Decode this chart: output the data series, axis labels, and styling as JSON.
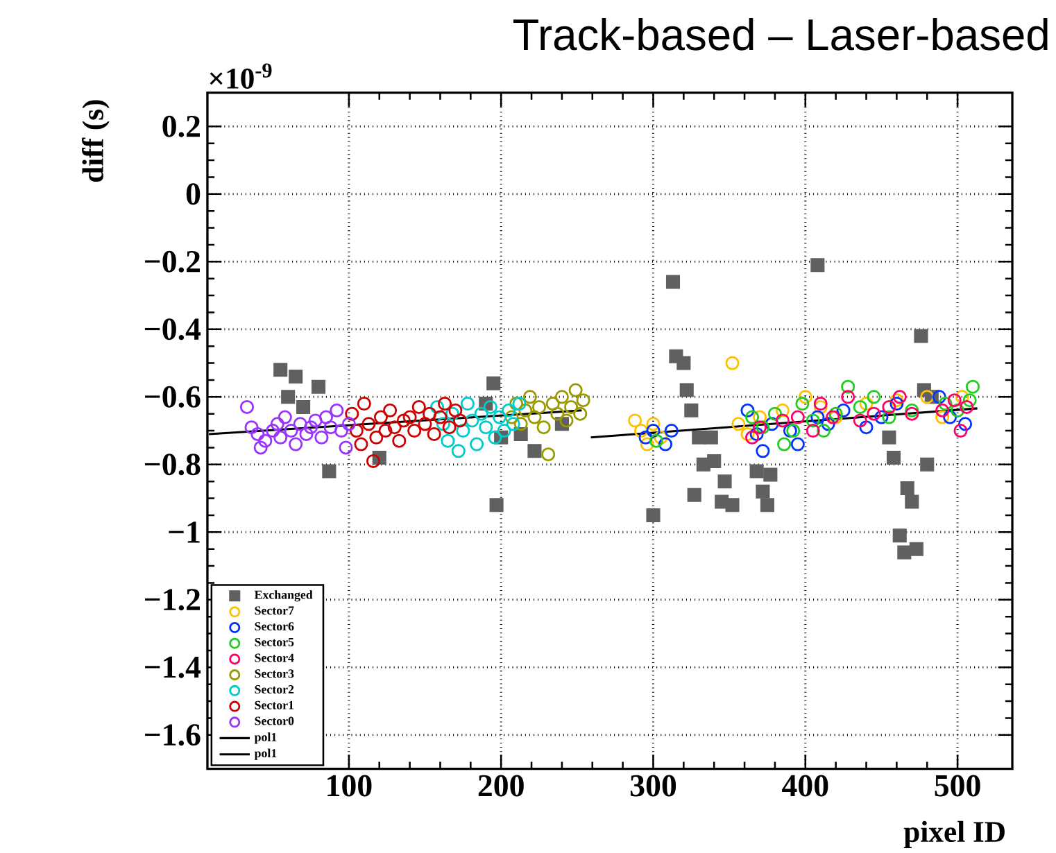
{
  "chart_data": {
    "type": "scatter",
    "title": "Track-based – Laser-based",
    "xlabel": "pixel ID",
    "ylabel": "diff (s)",
    "annotations": [
      "×10$^{-9}$"
    ],
    "xlim": [
      7,
      536
    ],
    "xticks": [
      100,
      200,
      300,
      400,
      500
    ],
    "ylim": [
      -1.7,
      0.3
    ],
    "yticks": [
      0.2,
      0,
      {
        "value": -0.2,
        "label": "−0.2"
      },
      {
        "value": -0.4,
        "label": "−0.4"
      },
      {
        "value": -0.6,
        "label": "−0.6"
      },
      {
        "value": -0.8,
        "label": "−0.8"
      },
      {
        "value": -1,
        "label": "−1"
      },
      {
        "value": -1.2,
        "label": "−1.2"
      },
      {
        "value": -1.4,
        "label": "−1.4"
      },
      {
        "value": -1.6,
        "label": "−1.6"
      }
    ],
    "grid": true,
    "legend": "bottom left",
    "series": [
      {
        "name": "Exchanged",
        "color": "#606060",
        "marker": "square",
        "x": [
          55,
          65,
          80,
          60,
          70,
          87,
          120,
          190,
          195,
          197,
          200,
          213,
          222,
          240,
          300,
          313,
          315,
          320,
          322,
          325,
          327,
          330,
          333,
          338,
          340,
          345,
          347,
          352,
          368,
          372,
          375,
          377,
          408,
          455,
          458,
          462,
          465,
          467,
          470,
          473,
          476,
          478,
          480,
          483
        ],
        "values": [
          -0.52,
          -0.54,
          -0.57,
          -0.6,
          -0.63,
          -0.82,
          -0.78,
          -0.62,
          -0.56,
          -0.92,
          -0.72,
          -0.71,
          -0.76,
          -0.68,
          -0.95,
          -0.26,
          -0.48,
          -0.5,
          -0.58,
          -0.64,
          -0.89,
          -0.72,
          -0.8,
          -0.72,
          -0.79,
          -0.91,
          -0.85,
          -0.92,
          -0.82,
          -0.88,
          -0.92,
          -0.83,
          -0.21,
          -0.72,
          -0.78,
          -1.01,
          -1.06,
          -0.87,
          -0.91,
          -1.05,
          -0.42,
          -0.58,
          -0.8,
          -0.6
        ]
      },
      {
        "name": "Sector7",
        "color": "#ffc000",
        "marker": "circle",
        "x": [
          288,
          292,
          296,
          300,
          305,
          352,
          356,
          362,
          370,
          385,
          400,
          410,
          420,
          440,
          460,
          480,
          490,
          503
        ],
        "values": [
          -0.67,
          -0.7,
          -0.74,
          -0.68,
          -0.72,
          -0.5,
          -0.68,
          -0.71,
          -0.66,
          -0.64,
          -0.6,
          -0.63,
          -0.66,
          -0.62,
          -0.61,
          -0.6,
          -0.66,
          -0.6
        ]
      },
      {
        "name": "Sector6",
        "color": "#0033ff",
        "marker": "circle",
        "x": [
          295,
          300,
          308,
          312,
          362,
          368,
          372,
          378,
          390,
          395,
          408,
          415,
          425,
          440,
          450,
          460,
          488,
          495,
          505
        ],
        "values": [
          -0.72,
          -0.7,
          -0.74,
          -0.7,
          -0.64,
          -0.71,
          -0.76,
          -0.68,
          -0.7,
          -0.74,
          -0.66,
          -0.68,
          -0.64,
          -0.69,
          -0.66,
          -0.62,
          -0.6,
          -0.66,
          -0.68
        ]
      },
      {
        "name": "Sector5",
        "color": "#22cc22",
        "marker": "circle",
        "x": [
          302,
          365,
          372,
          380,
          386,
          392,
          398,
          405,
          412,
          420,
          428,
          436,
          445,
          455,
          470,
          492,
          500,
          510,
          508
        ],
        "values": [
          -0.73,
          -0.66,
          -0.69,
          -0.65,
          -0.74,
          -0.7,
          -0.62,
          -0.67,
          -0.7,
          -0.65,
          -0.57,
          -0.63,
          -0.6,
          -0.66,
          -0.64,
          -0.62,
          -0.64,
          -0.57,
          -0.61
        ]
      },
      {
        "name": "Sector4",
        "color": "#ff0066",
        "marker": "circle",
        "x": [
          365,
          370,
          385,
          395,
          405,
          410,
          418,
          428,
          436,
          445,
          455,
          462,
          470,
          490,
          498,
          502,
          506
        ],
        "values": [
          -0.72,
          -0.69,
          -0.67,
          -0.66,
          -0.7,
          -0.62,
          -0.66,
          -0.6,
          -0.67,
          -0.65,
          -0.63,
          -0.6,
          -0.65,
          -0.64,
          -0.61,
          -0.7,
          -0.63
        ]
      },
      {
        "name": "Sector3",
        "color": "#999900",
        "marker": "circle",
        "x": [
          207,
          210,
          213,
          216,
          219,
          222,
          225,
          228,
          231,
          234,
          237,
          240,
          243,
          246,
          249,
          252,
          254
        ],
        "values": [
          -0.66,
          -0.62,
          -0.68,
          -0.64,
          -0.6,
          -0.66,
          -0.63,
          -0.69,
          -0.77,
          -0.62,
          -0.65,
          -0.6,
          -0.67,
          -0.63,
          -0.58,
          -0.65,
          -0.61
        ]
      },
      {
        "name": "Sector2",
        "color": "#00cccc",
        "marker": "circle",
        "x": [
          158,
          162,
          165,
          168,
          172,
          175,
          178,
          181,
          184,
          187,
          190,
          193,
          196,
          199,
          202,
          205,
          208,
          212
        ],
        "values": [
          -0.63,
          -0.68,
          -0.73,
          -0.65,
          -0.76,
          -0.7,
          -0.62,
          -0.67,
          -0.74,
          -0.65,
          -0.69,
          -0.63,
          -0.72,
          -0.66,
          -0.7,
          -0.64,
          -0.68,
          -0.62
        ]
      },
      {
        "name": "Sector1",
        "color": "#cc0000",
        "marker": "circle",
        "x": [
          102,
          105,
          108,
          110,
          113,
          116,
          118,
          121,
          124,
          127,
          130,
          133,
          136,
          140,
          143,
          146,
          150,
          153,
          156,
          160,
          163,
          166,
          170,
          173
        ],
        "values": [
          -0.65,
          -0.7,
          -0.74,
          -0.62,
          -0.68,
          -0.79,
          -0.72,
          -0.66,
          -0.7,
          -0.64,
          -0.69,
          -0.73,
          -0.67,
          -0.66,
          -0.7,
          -0.63,
          -0.68,
          -0.65,
          -0.71,
          -0.66,
          -0.62,
          -0.69,
          -0.64,
          -0.67
        ]
      },
      {
        "name": "Sector0",
        "color": "#9933ff",
        "marker": "circle",
        "x": [
          33,
          36,
          40,
          42,
          45,
          50,
          53,
          55,
          58,
          62,
          65,
          68,
          72,
          75,
          78,
          82,
          85,
          88,
          92,
          95,
          98,
          100
        ],
        "values": [
          -0.63,
          -0.69,
          -0.71,
          -0.75,
          -0.73,
          -0.7,
          -0.68,
          -0.72,
          -0.66,
          -0.7,
          -0.74,
          -0.68,
          -0.71,
          -0.69,
          -0.67,
          -0.72,
          -0.66,
          -0.69,
          -0.64,
          -0.7,
          -0.75,
          -0.68
        ]
      },
      {
        "name": "pol1",
        "type": "line",
        "color": "#000000",
        "marker": "none",
        "x": [
          8,
          253
        ],
        "values": [
          -0.71,
          -0.64
        ]
      },
      {
        "name": "pol1",
        "type": "line",
        "color": "#000000",
        "marker": "none",
        "x": [
          259,
          513
        ],
        "values": [
          -0.72,
          -0.634
        ]
      }
    ]
  }
}
